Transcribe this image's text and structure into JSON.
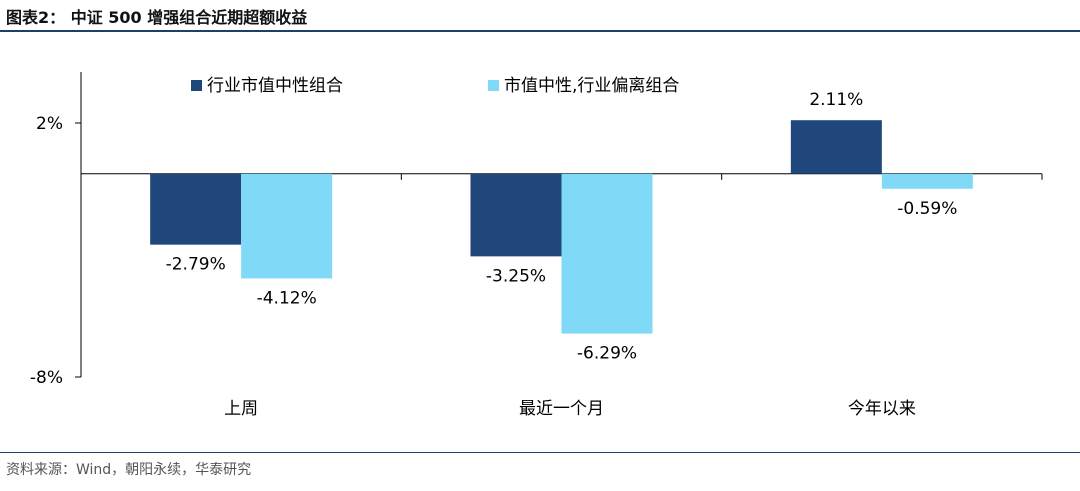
{
  "header": {
    "title": "图表2：  中证 500 增强组合近期超额收益"
  },
  "footer": {
    "source": "资料来源：Wind，朝阳永续，华泰研究"
  },
  "colors": {
    "series1": "#1f477b",
    "series2": "#7fd9f7",
    "rule": "#1f3e6e"
  },
  "chart_data": {
    "type": "bar",
    "categories": [
      "上周",
      "最近一个月",
      "今年以来"
    ],
    "series": [
      {
        "name": "行业市值中性组合",
        "values": [
          -2.79,
          -3.25,
          2.11
        ],
        "labels": [
          "-2.79%",
          "-3.25%",
          "2.11%"
        ]
      },
      {
        "name": "市值中性,行业偏离组合",
        "values": [
          -4.12,
          -6.29,
          -0.59
        ],
        "labels": [
          "-4.12%",
          "-6.29%",
          "-0.59%"
        ]
      }
    ],
    "y_ticks": [
      {
        "value": 2,
        "label": "2%"
      },
      {
        "value": -8,
        "label": "-8%"
      }
    ],
    "ylim": [
      -8,
      2
    ],
    "legend_position": "top",
    "grid": false
  }
}
